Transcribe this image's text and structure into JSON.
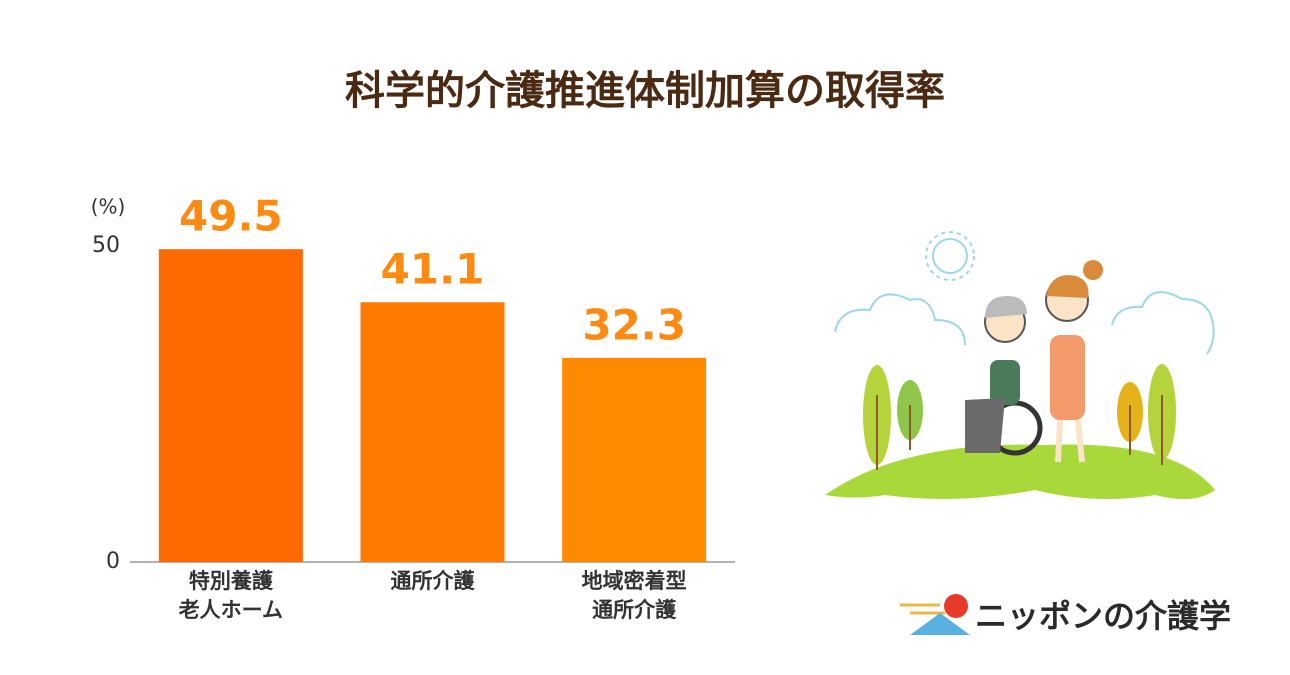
{
  "chart_data": {
    "type": "bar",
    "title": "科学的介護推進体制加算の取得率",
    "y_unit": "(%)",
    "categories": [
      [
        "特別養護",
        "老人ホーム"
      ],
      [
        "通所介護"
      ],
      [
        "地域密着型",
        "通所介護"
      ]
    ],
    "values": [
      49.5,
      41.1,
      32.3
    ],
    "colors": [
      "#ff6a00",
      "#ff7a00",
      "#ff8a00"
    ],
    "value_label_color": "#ff8a12",
    "ylim": [
      0,
      50
    ],
    "yticks": [
      0,
      50
    ],
    "grid": false
  },
  "logo": "ニッポンの介護学"
}
